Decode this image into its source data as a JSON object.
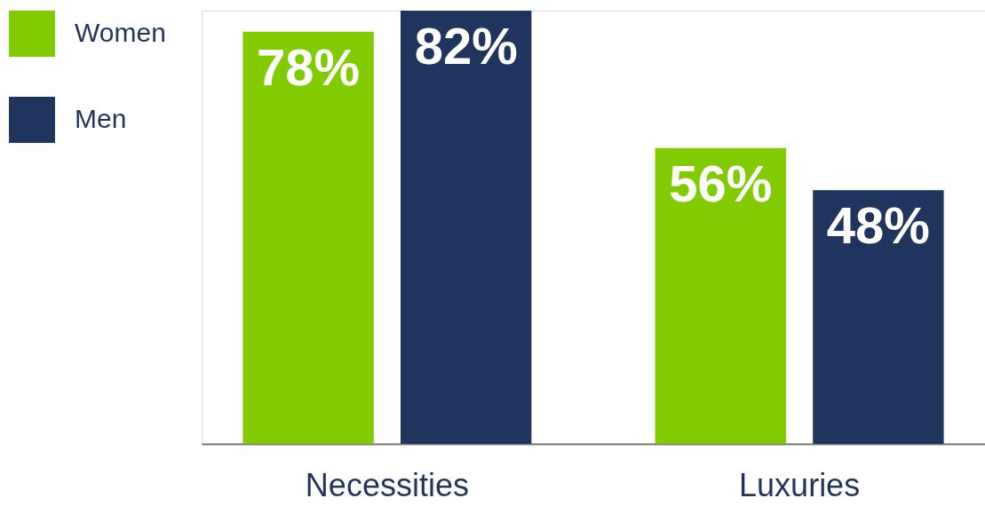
{
  "chart_data": {
    "type": "bar",
    "categories": [
      "Necessities",
      "Luxuries"
    ],
    "series": [
      {
        "name": "Women",
        "color": "#80cc00",
        "values": [
          78,
          56
        ],
        "value_labels": [
          "78%",
          "56%"
        ]
      },
      {
        "name": "Men",
        "color": "#1f355e",
        "values": [
          82,
          48
        ],
        "value_labels": [
          "82%",
          "48%"
        ]
      }
    ],
    "legend": "left",
    "grid": false
  }
}
